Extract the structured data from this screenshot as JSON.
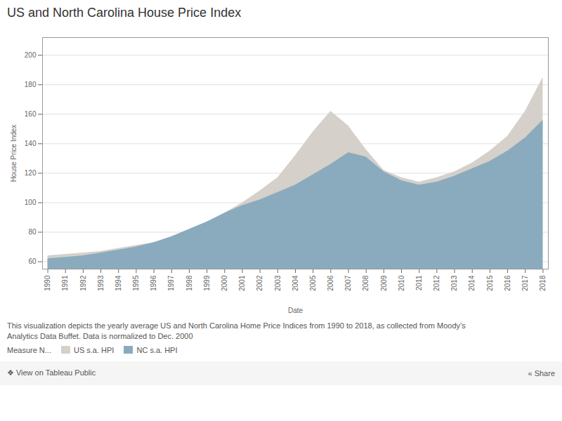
{
  "chart_data": {
    "type": "area",
    "title": "US and North Carolina House Price Index",
    "xlabel": "Date",
    "ylabel": "House Price Index",
    "x": [
      1990,
      1991,
      1992,
      1993,
      1994,
      1995,
      1996,
      1997,
      1998,
      1999,
      2000,
      2001,
      2002,
      2003,
      2004,
      2005,
      2006,
      2007,
      2008,
      2009,
      2010,
      2011,
      2012,
      2013,
      2014,
      2015,
      2016,
      2017,
      2018
    ],
    "series": [
      {
        "name": "US s.a. HPI",
        "color": "#d5d0c9",
        "values": [
          64,
          65,
          66,
          67,
          69,
          71,
          73,
          76,
          80,
          86,
          93,
          100,
          108,
          117,
          132,
          148,
          162,
          152,
          136,
          122,
          117,
          114,
          117,
          121,
          127,
          135,
          145,
          162,
          185
        ]
      },
      {
        "name": "NC s.a. HPI",
        "color": "#8aabbe",
        "values": [
          62,
          63,
          64,
          66,
          68,
          70,
          73,
          77,
          82,
          87,
          93,
          98,
          102,
          107,
          112,
          119,
          126,
          134,
          131,
          121,
          115,
          112,
          114,
          118,
          123,
          128,
          135,
          144,
          156
        ]
      }
    ],
    "xlim": [
      1989.7,
      2018.3
    ],
    "xticks": [
      1990,
      1991,
      1992,
      1993,
      1994,
      1995,
      1996,
      1997,
      1998,
      1999,
      2000,
      2001,
      2002,
      2003,
      2004,
      2005,
      2006,
      2007,
      2008,
      2009,
      2010,
      2011,
      2012,
      2013,
      2014,
      2015,
      2016,
      2017,
      2018
    ],
    "ylim": [
      55,
      212
    ],
    "yticks": [
      60,
      80,
      100,
      120,
      140,
      160,
      180,
      200
    ],
    "grid": true,
    "legend": "bottom",
    "legend_title": "Measure N...",
    "caption": [
      "This visualization depicts the yearly average US and North Carolina Home Price Indices from 1990 to 2018, as collected from Moody’s",
      "Analytics Data Buffet. Data is normalized to Dec. 2000"
    ],
    "annotations": [
      "❖ View on Tableau Public",
      "« Share"
    ]
  }
}
